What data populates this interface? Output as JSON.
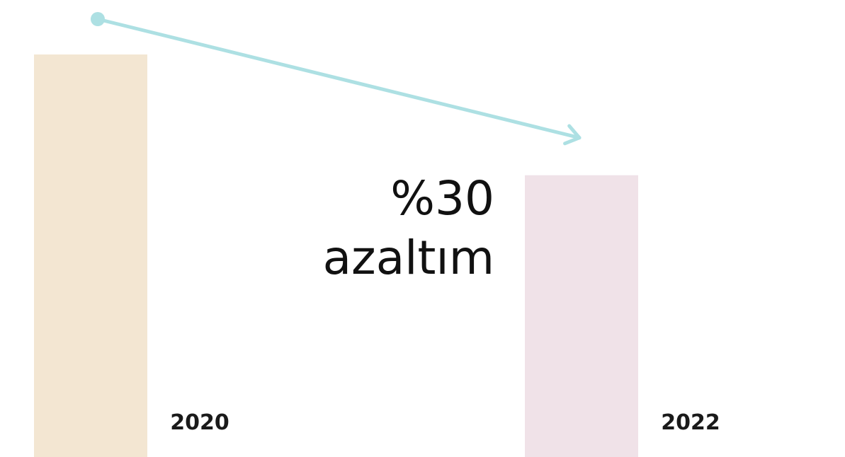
{
  "chart_data": {
    "type": "bar",
    "categories": [
      "2020",
      "2022"
    ],
    "values": [
      100,
      70
    ],
    "ylim": [
      0,
      100
    ],
    "colors": [
      "#f3e6d2",
      "#f0e2e8"
    ],
    "arrow_color": "#ade0e3",
    "annotation": {
      "line1": "%30",
      "line2": "azaltım"
    },
    "grid": false,
    "axes_visible": false
  }
}
